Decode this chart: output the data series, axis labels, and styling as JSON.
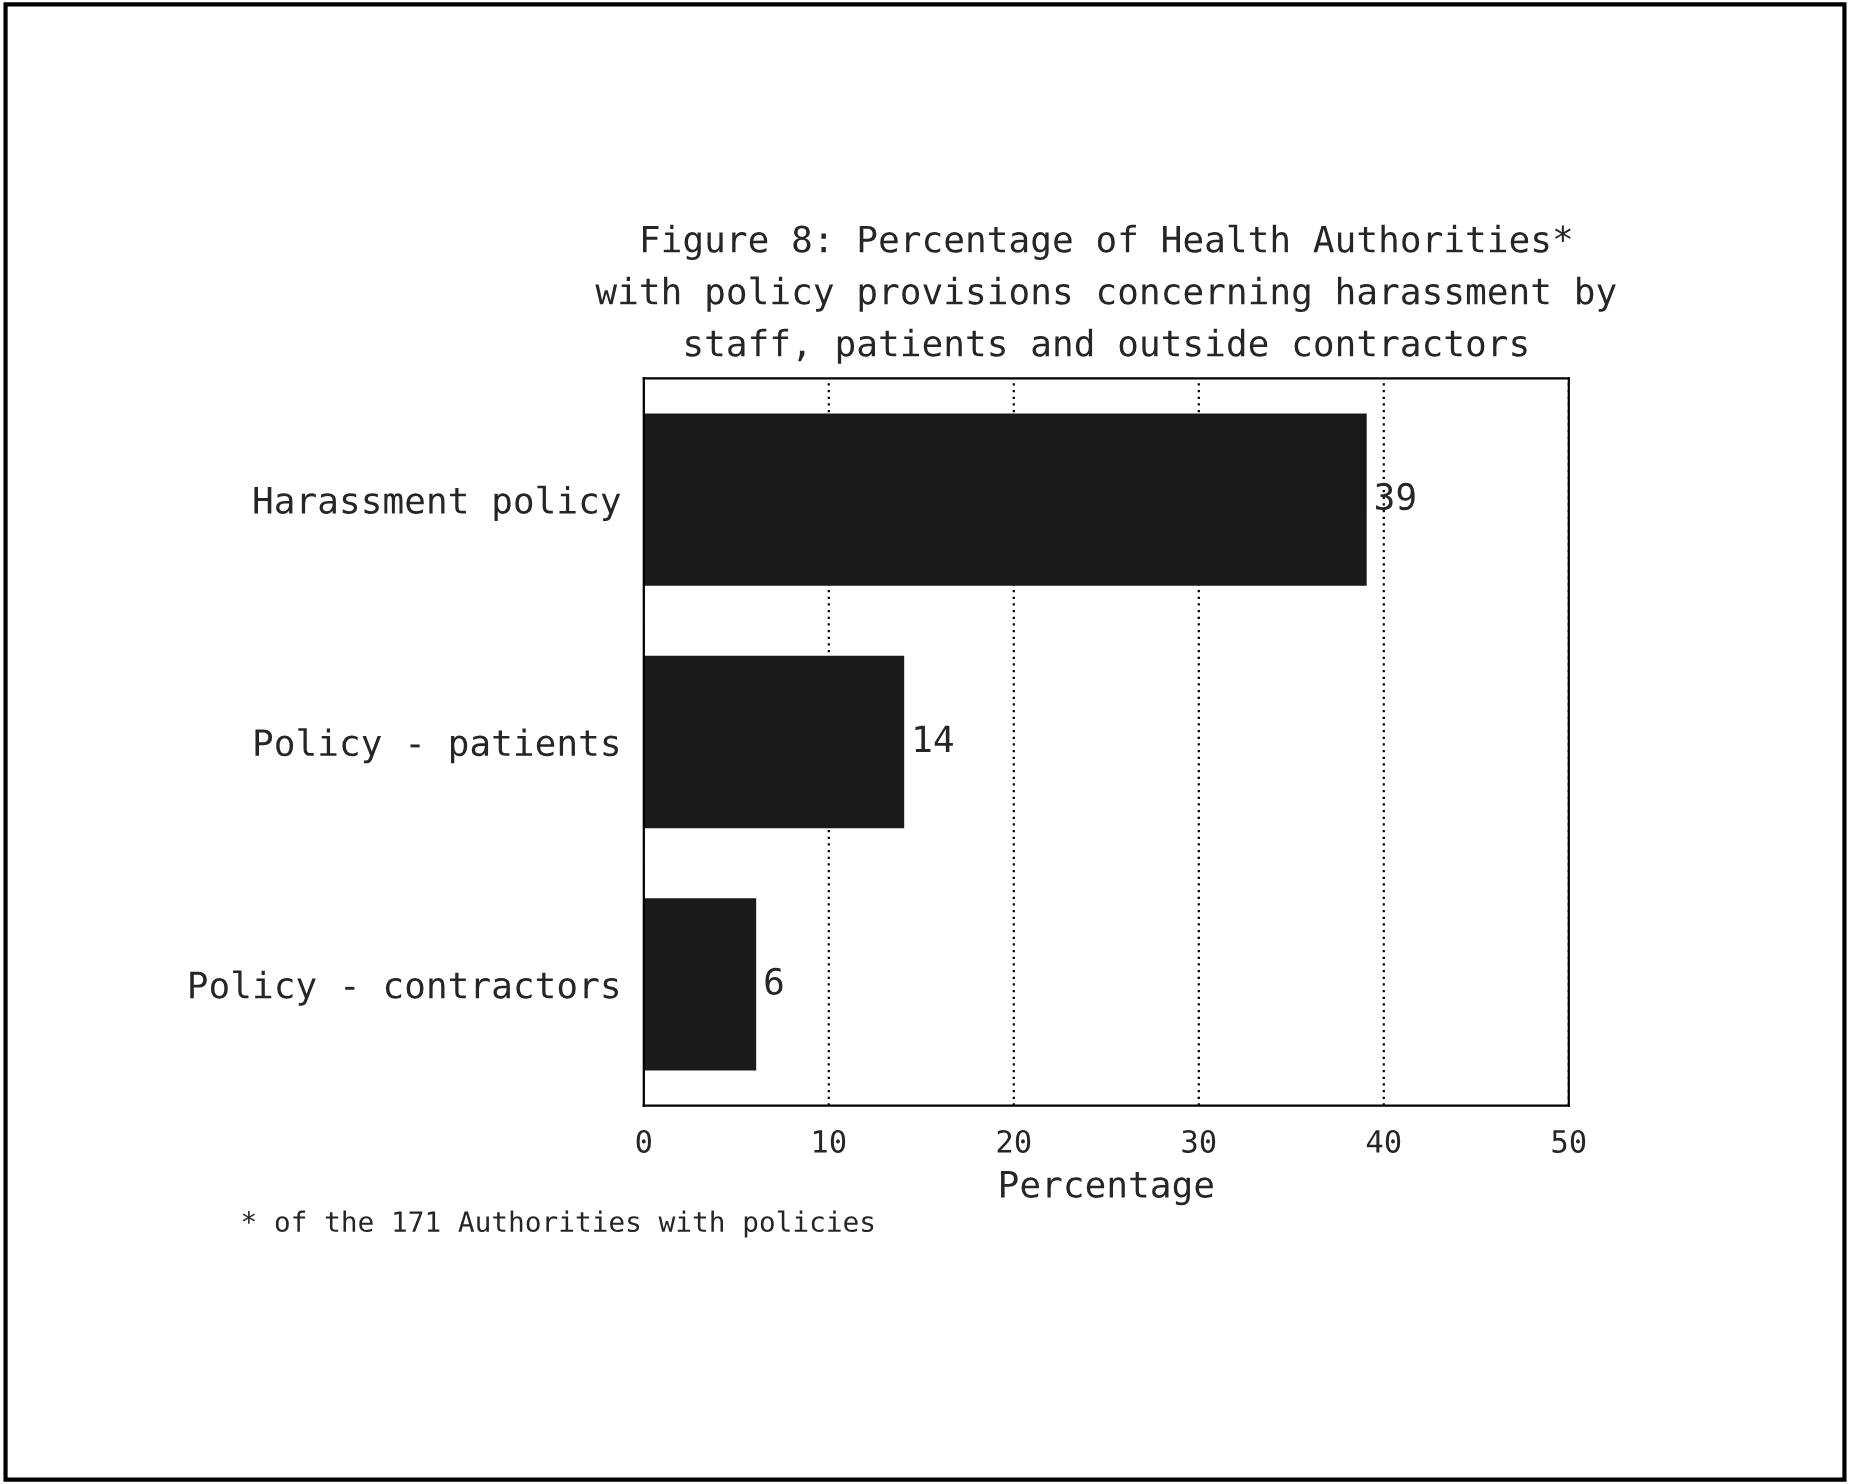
{
  "chart_data": {
    "type": "bar",
    "orientation": "horizontal",
    "title": "Figure 8: Percentage of Health Authorities*\nwith policy provisions concerning harassment by\nstaff, patients and outside contractors",
    "categories": [
      "Harassment policy",
      "Policy - patients",
      "Policy - contractors"
    ],
    "values": [
      39,
      14,
      6
    ],
    "color": "#1a1a1a",
    "xlabel": "Percentage",
    "xlim": [
      0,
      50
    ],
    "xticks": [
      0,
      10,
      20,
      30,
      40,
      50
    ],
    "grid": "x",
    "data_labels": true,
    "annotations": [
      "* of the 171 Authorities with policies"
    ]
  }
}
